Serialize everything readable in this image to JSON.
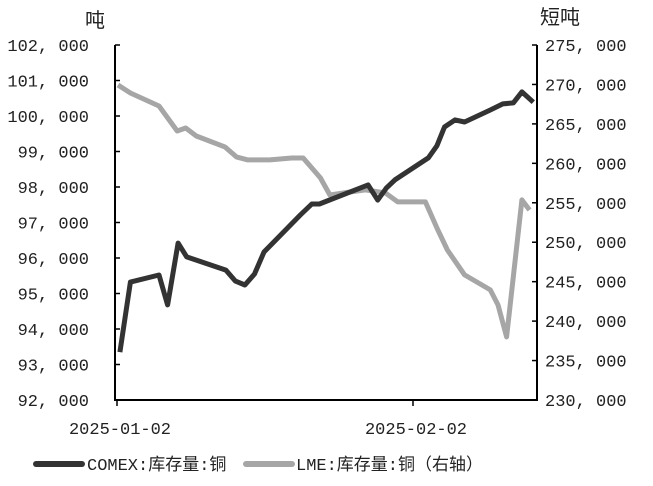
{
  "chart_data": {
    "type": "line",
    "title": "",
    "x_unit": "days since 2025-01-02",
    "xlim": [
      0,
      44
    ],
    "x_ticks": [
      {
        "value": 0,
        "label": "2025-01-02"
      },
      {
        "value": 31,
        "label": "2025-02-02"
      }
    ],
    "left_axis": {
      "label": "吨",
      "ylim": [
        92000,
        102000
      ],
      "tick_labels": [
        "92, 000",
        "93, 000",
        "94, 000",
        "95, 000",
        "96, 000",
        "97, 000",
        "98, 000",
        "99, 000",
        "100, 000",
        "101, 000",
        "102, 000"
      ]
    },
    "right_axis": {
      "label": "短吨",
      "ylim": [
        230000,
        275000
      ],
      "tick_labels": [
        "230, 000",
        "235, 000",
        "240, 000",
        "245, 000",
        "250, 000",
        "255, 000",
        "260, 000",
        "265, 000",
        "270, 000",
        "275, 000"
      ]
    },
    "grid": false,
    "legend_position": "bottom",
    "series": [
      {
        "name": "COMEX:库存量:铜",
        "axis": "left",
        "color": "#333333",
        "x": [
          0.3,
          1.4,
          4.4,
          5.3,
          6.4,
          7.3,
          11.4,
          12.4,
          13.4,
          14.4,
          15.4,
          19.2,
          20.4,
          21.2,
          26.3,
          27.3,
          28.2,
          29.1,
          32.6,
          33.5,
          34.3,
          35.4,
          36.4,
          39.1,
          40.4,
          41.5,
          42.4,
          43.6
        ],
        "y": [
          93350,
          95320,
          95520,
          94680,
          96420,
          96030,
          95660,
          95350,
          95240,
          95550,
          96170,
          97210,
          97520,
          97520,
          98060,
          97630,
          97970,
          98200,
          98820,
          99160,
          99690,
          99890,
          99830,
          100170,
          100340,
          100370,
          100680,
          100390
        ]
      },
      {
        "name": "LME:库存量:铜（右轴）",
        "axis": "right",
        "color": "#a6a6a6",
        "x": [
          0.1,
          1.4,
          4.4,
          6.3,
          7.2,
          8.3,
          11.3,
          12.5,
          13.7,
          16,
          18.3,
          19.5,
          21.3,
          22.3,
          24.4,
          26,
          28.1,
          29.4,
          32.3,
          33.5,
          34.6,
          36.4,
          39.1,
          39.9,
          40.8,
          42.4,
          43.2
        ],
        "y": [
          269930,
          268920,
          267270,
          264100,
          264480,
          263470,
          262080,
          260810,
          260430,
          260430,
          260680,
          260680,
          258150,
          255990,
          256370,
          256630,
          256250,
          255110,
          255110,
          251810,
          249020,
          245860,
          243960,
          242050,
          238000,
          255360,
          254090
        ]
      }
    ]
  }
}
